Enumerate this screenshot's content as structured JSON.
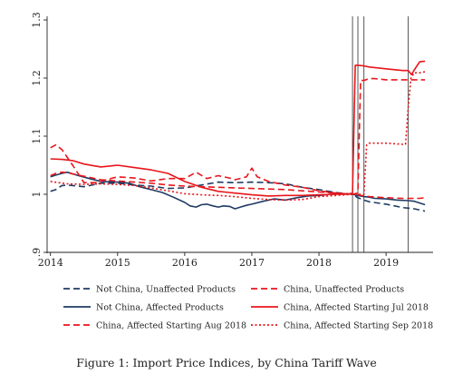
{
  "chart_data": {
    "type": "line",
    "caption": "Figure 1: Import Price Indices, by China Tariff Wave",
    "xlim": [
      2013.95,
      2019.7
    ],
    "ylim": [
      0.9,
      1.3
    ],
    "x_ticks": [
      2014,
      2015,
      2016,
      2017,
      2018,
      2019
    ],
    "x_tick_labels": [
      "2014",
      "2015",
      "2016",
      "2017",
      "2018",
      "2019"
    ],
    "y_ticks": [
      0.9,
      1.0,
      1.1,
      1.2,
      1.3
    ],
    "y_tick_labels": [
      ".9",
      "1",
      "1.1",
      "1.2",
      "1.3"
    ],
    "vertical_lines": [
      2018.5,
      2018.58,
      2018.67,
      2019.33
    ],
    "grid": false,
    "legend_placement": "bottom",
    "colors": {
      "navy": "#1f3b63",
      "red": "#e8161b"
    },
    "series": [
      {
        "name": "Not China, Unaffected Products",
        "color": "#1f3b63",
        "style": "dashed",
        "x": [
          2014.0,
          2014.08,
          2014.17,
          2014.25,
          2014.5,
          2014.75,
          2015.0,
          2015.25,
          2015.5,
          2015.75,
          2016.0,
          2016.25,
          2016.5,
          2016.75,
          2017.0,
          2017.25,
          2017.5,
          2017.75,
          2018.0,
          2018.25,
          2018.5,
          2018.58,
          2018.67,
          2018.75,
          2019.0,
          2019.25,
          2019.42,
          2019.5,
          2019.58
        ],
        "y": [
          1.005,
          1.008,
          1.015,
          1.016,
          1.013,
          1.019,
          1.019,
          1.016,
          1.014,
          1.01,
          1.011,
          1.016,
          1.021,
          1.02,
          1.021,
          1.02,
          1.018,
          1.012,
          1.008,
          1.003,
          1.0,
          0.994,
          0.99,
          0.987,
          0.983,
          0.977,
          0.975,
          0.973,
          0.971
        ]
      },
      {
        "name": "Not China, Affected Products",
        "color": "#1f3b63",
        "style": "solid",
        "x": [
          2014.0,
          2014.08,
          2014.17,
          2014.25,
          2014.42,
          2014.58,
          2014.75,
          2015.0,
          2015.17,
          2015.33,
          2015.5,
          2015.67,
          2015.83,
          2016.0,
          2016.08,
          2016.17,
          2016.25,
          2016.33,
          2016.42,
          2016.5,
          2016.58,
          2016.67,
          2016.75,
          2016.83,
          2016.92,
          2017.0,
          2017.17,
          2017.33,
          2017.5,
          2017.67,
          2017.83,
          2018.0,
          2018.17,
          2018.33,
          2018.5,
          2018.58,
          2018.67,
          2018.75,
          2018.83,
          2019.0,
          2019.17,
          2019.33,
          2019.42,
          2019.5,
          2019.58
        ],
        "y": [
          1.03,
          1.033,
          1.036,
          1.038,
          1.032,
          1.027,
          1.022,
          1.021,
          1.019,
          1.013,
          1.008,
          1.003,
          0.995,
          0.986,
          0.98,
          0.978,
          0.982,
          0.983,
          0.98,
          0.978,
          0.98,
          0.979,
          0.975,
          0.978,
          0.981,
          0.983,
          0.988,
          0.992,
          0.99,
          0.994,
          0.997,
          0.998,
          1.0,
          1.001,
          1.0,
          0.998,
          0.996,
          0.995,
          0.993,
          0.992,
          0.99,
          0.989,
          0.988,
          0.985,
          0.982
        ]
      },
      {
        "name": "China, Unaffected Products",
        "color": "#e8161b",
        "style": "dashed",
        "x": [
          2014.0,
          2014.08,
          2014.17,
          2014.25,
          2014.42,
          2014.58,
          2014.75,
          2015.0,
          2015.25,
          2015.5,
          2015.75,
          2016.0,
          2016.25,
          2016.5,
          2016.75,
          2017.0,
          2017.25,
          2017.5,
          2017.75,
          2018.0,
          2018.25,
          2018.5,
          2018.58,
          2018.67,
          2018.75,
          2019.0,
          2019.25,
          2019.42,
          2019.5,
          2019.58
        ],
        "y": [
          1.032,
          1.036,
          1.038,
          1.037,
          1.033,
          1.029,
          1.025,
          1.023,
          1.021,
          1.019,
          1.016,
          1.014,
          1.013,
          1.012,
          1.011,
          1.01,
          1.009,
          1.008,
          1.006,
          1.004,
          1.002,
          1.0,
          0.999,
          0.997,
          0.996,
          0.994,
          0.993,
          0.993,
          0.993,
          0.994
        ]
      },
      {
        "name": "China, Affected Starting Jul 2018",
        "color": "#e8161b",
        "style": "solid",
        "x": [
          2014.0,
          2014.17,
          2014.33,
          2014.5,
          2014.75,
          2015.0,
          2015.25,
          2015.5,
          2015.75,
          2016.0,
          2016.25,
          2016.5,
          2016.75,
          2017.0,
          2017.25,
          2017.5,
          2017.75,
          2018.0,
          2018.25,
          2018.42,
          2018.5,
          2018.54,
          2018.58,
          2018.67,
          2018.75,
          2019.0,
          2019.25,
          2019.33,
          2019.38,
          2019.42,
          2019.5,
          2019.58
        ],
        "y": [
          1.061,
          1.06,
          1.058,
          1.052,
          1.047,
          1.05,
          1.046,
          1.042,
          1.036,
          1.022,
          1.012,
          1.005,
          1.002,
          0.999,
          0.997,
          0.998,
          0.998,
          0.999,
          1.0,
          1.0,
          1.002,
          1.222,
          1.222,
          1.221,
          1.219,
          1.216,
          1.213,
          1.213,
          1.206,
          1.214,
          1.228,
          1.229
        ]
      },
      {
        "name": "China, Affected Starting Aug 2018",
        "color": "#e8161b",
        "style": "dashed",
        "x": [
          2014.0,
          2014.08,
          2014.17,
          2014.33,
          2014.5,
          2014.67,
          2014.83,
          2015.0,
          2015.25,
          2015.5,
          2015.75,
          2016.0,
          2016.17,
          2016.33,
          2016.5,
          2016.67,
          2016.75,
          2016.92,
          2017.0,
          2017.08,
          2017.17,
          2017.25,
          2017.5,
          2017.75,
          2018.0,
          2018.25,
          2018.5,
          2018.58,
          2018.62,
          2018.67,
          2018.75,
          2018.83,
          2019.0,
          2019.25,
          2019.5,
          2019.58
        ],
        "y": [
          1.08,
          1.085,
          1.077,
          1.05,
          1.02,
          1.02,
          1.025,
          1.03,
          1.028,
          1.023,
          1.027,
          1.027,
          1.038,
          1.027,
          1.032,
          1.028,
          1.025,
          1.03,
          1.045,
          1.03,
          1.026,
          1.022,
          1.016,
          1.012,
          1.006,
          1.002,
          1.0,
          1.002,
          1.196,
          1.196,
          1.199,
          1.199,
          1.197,
          1.197,
          1.197,
          1.197
        ]
      },
      {
        "name": "China, Affected Starting Sep 2018",
        "color": "#e8161b",
        "style": "dotted",
        "x": [
          2014.0,
          2014.25,
          2014.5,
          2014.75,
          2015.0,
          2015.25,
          2015.5,
          2015.75,
          2016.0,
          2016.25,
          2016.5,
          2016.75,
          2017.0,
          2017.25,
          2017.5,
          2017.75,
          2018.0,
          2018.25,
          2018.5,
          2018.58,
          2018.67,
          2018.71,
          2018.75,
          2019.0,
          2019.25,
          2019.29,
          2019.33,
          2019.37,
          2019.42,
          2019.5,
          2019.58
        ],
        "y": [
          1.022,
          1.018,
          1.017,
          1.018,
          1.017,
          1.015,
          1.011,
          1.006,
          1.001,
          0.999,
          0.998,
          0.996,
          0.993,
          0.991,
          0.99,
          0.991,
          0.996,
          0.998,
          1.0,
          1.0,
          1.0,
          1.085,
          1.088,
          1.088,
          1.086,
          1.086,
          1.15,
          1.2,
          1.209,
          1.209,
          1.211
        ]
      }
    ],
    "legend": [
      {
        "label": "Not China, Unaffected Products",
        "color": "#1f3b63",
        "style": "dashed"
      },
      {
        "label": "China, Unaffected Products",
        "color": "#e8161b",
        "style": "dashed"
      },
      {
        "label": "Not China, Affected Products",
        "color": "#1f3b63",
        "style": "solid"
      },
      {
        "label": "China, Affected Starting Jul 2018",
        "color": "#e8161b",
        "style": "solid"
      },
      {
        "label": "China, Affected Starting Aug 2018",
        "color": "#e8161b",
        "style": "dashed"
      },
      {
        "label": "China, Affected Starting Sep 2018",
        "color": "#e8161b",
        "style": "dotted"
      }
    ]
  }
}
